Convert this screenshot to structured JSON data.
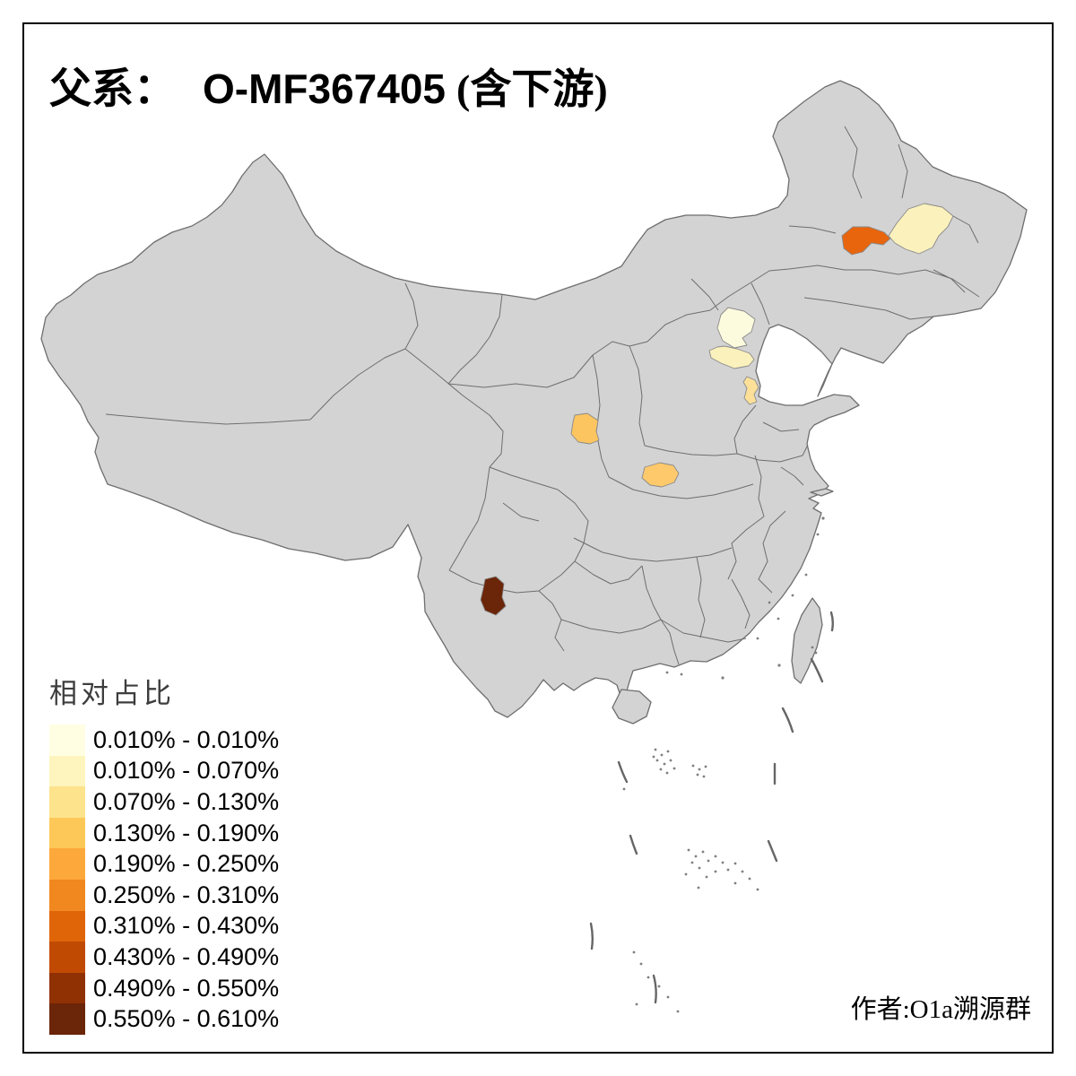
{
  "title": {
    "prefix": "父系：",
    "haplogroup": "O-MF367405",
    "suffix": "(含下游)"
  },
  "legend": {
    "title": "相对占比",
    "bins": [
      {
        "label": "0.010% - 0.010%",
        "color": "#FFFEE3"
      },
      {
        "label": "0.010% - 0.070%",
        "color": "#FEF5BE"
      },
      {
        "label": "0.070% - 0.130%",
        "color": "#FDE38C"
      },
      {
        "label": "0.130% - 0.190%",
        "color": "#FDC858"
      },
      {
        "label": "0.190% - 0.250%",
        "color": "#FDA83B"
      },
      {
        "label": "0.250% - 0.310%",
        "color": "#F1871F"
      },
      {
        "label": "0.310% - 0.430%",
        "color": "#E06508"
      },
      {
        "label": "0.430% - 0.490%",
        "color": "#C14A02"
      },
      {
        "label": "0.490% - 0.550%",
        "color": "#903104"
      },
      {
        "label": "0.550% - 0.610%",
        "color": "#6B2508"
      }
    ]
  },
  "footer": {
    "author": "作者:O1a溯源群"
  },
  "map": {
    "colors": {
      "land": "#D3D3D3",
      "border": "#6E6E6E",
      "frame": "#000000",
      "sea": "#FFFFFF",
      "dash": "#666666"
    },
    "regions": [
      {
        "id": "region-beijing",
        "location": "beijing-area",
        "color": "#FDFBDE",
        "value_range": "0.010% - 0.010%"
      },
      {
        "id": "region-langfang",
        "location": "hebei-central-area",
        "color": "#FBF1BC",
        "value_range": "0.010% - 0.070%"
      },
      {
        "id": "region-cangzhou",
        "location": "hebei-southeast-area",
        "color": "#FCE098",
        "value_range": "0.070% - 0.130%"
      },
      {
        "id": "region-east-gansu",
        "location": "east-gansu-area",
        "color": "#FDC55F",
        "value_range": "0.130% - 0.190%"
      },
      {
        "id": "region-south-shaanxi",
        "location": "south-shaanxi-area",
        "color": "#FDC96B",
        "value_range": "0.130% - 0.190%"
      },
      {
        "id": "region-west-jilin",
        "location": "northeast-west-jilin",
        "color": "#E8650D",
        "value_range": "0.310% - 0.430%"
      },
      {
        "id": "region-harbin",
        "location": "northeast-harbin-area",
        "color": "#FBF1BC",
        "value_range": "0.010% - 0.070%"
      },
      {
        "id": "region-central-yunnan",
        "location": "central-yunnan-area",
        "color": "#6B2508",
        "value_range": "0.550% - 0.610%"
      }
    ]
  },
  "chart_data": {
    "type": "choropleth",
    "title": "父系： O-MF367405 (含下游)",
    "legend_title": "相对占比",
    "legend_position": "bottom-left",
    "bin_labels": [
      "0.010% - 0.010%",
      "0.010% - 0.070%",
      "0.070% - 0.130%",
      "0.130% - 0.190%",
      "0.190% - 0.250%",
      "0.250% - 0.310%",
      "0.310% - 0.430%",
      "0.430% - 0.490%",
      "0.490% - 0.550%",
      "0.550% - 0.610%"
    ],
    "shaded_regions": [
      {
        "location": "beijing-area",
        "value_range": "0.010% - 0.010%"
      },
      {
        "location": "hebei-central-area",
        "value_range": "0.010% - 0.070%"
      },
      {
        "location": "hebei-southeast-area",
        "value_range": "0.070% - 0.130%"
      },
      {
        "location": "east-gansu-area",
        "value_range": "0.130% - 0.190%"
      },
      {
        "location": "south-shaanxi-area",
        "value_range": "0.130% - 0.190%"
      },
      {
        "location": "northeast-west-jilin",
        "value_range": "0.310% - 0.430%"
      },
      {
        "location": "northeast-harbin-area",
        "value_range": "0.010% - 0.070%"
      },
      {
        "location": "central-yunnan-area",
        "value_range": "0.550% - 0.610%"
      }
    ],
    "note": "Map of China at province/prefecture level; unshaded land is gray"
  }
}
